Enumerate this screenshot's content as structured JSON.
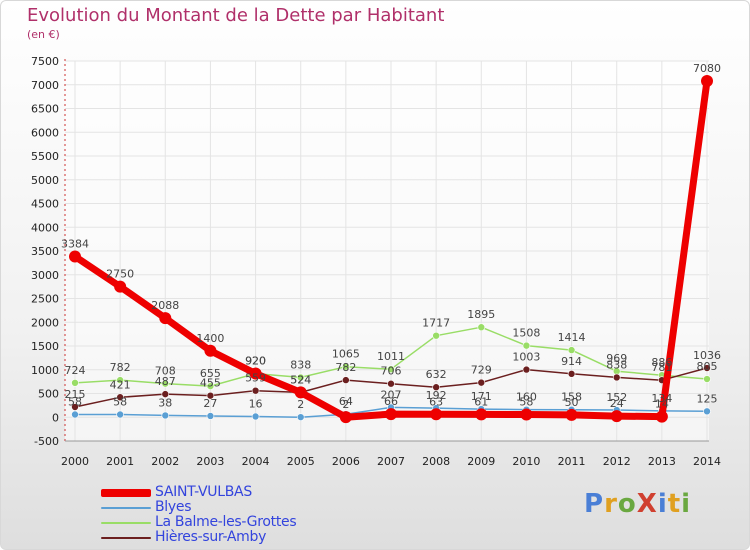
{
  "title": "Evolution du Montant de la Dette par Habitant",
  "subtitle": "(en €)",
  "brand": {
    "text": "ProXiti",
    "letters": [
      {
        "ch": "P",
        "color": "#4a7fd6"
      },
      {
        "ch": "r",
        "color": "#e0a020"
      },
      {
        "ch": "o",
        "color": "#6aa840"
      },
      {
        "ch": "X",
        "color": "#d04030"
      },
      {
        "ch": "i",
        "color": "#4a7fd6"
      },
      {
        "ch": "t",
        "color": "#e0a020"
      },
      {
        "ch": "i",
        "color": "#6aa840"
      }
    ]
  },
  "chart_data": {
    "type": "line",
    "title": "Evolution du Montant de la Dette par Habitant",
    "subtitle": "(en €)",
    "x": [
      2000,
      2001,
      2002,
      2003,
      2004,
      2005,
      2006,
      2007,
      2008,
      2009,
      2010,
      2011,
      2012,
      2013,
      2014
    ],
    "ylim": [
      -500,
      7500
    ],
    "yticks": [
      -500,
      0,
      500,
      1000,
      1500,
      2000,
      2500,
      3000,
      3500,
      4000,
      4500,
      5000,
      5500,
      6000,
      6500,
      7000,
      7500
    ],
    "grid": true,
    "legend_position": "bottom-left",
    "series": [
      {
        "name": "SAINT-VULBAS",
        "color": "#ee0000",
        "width": 7,
        "values": [
          3384,
          2750,
          2088,
          1400,
          920,
          524,
          2,
          66,
          63,
          61,
          58,
          50,
          24,
          14,
          7080
        ]
      },
      {
        "name": "Blyes",
        "color": "#5a9fd4",
        "width": 1.5,
        "values": [
          58,
          58,
          38,
          27,
          16,
          2,
          64,
          207,
          192,
          171,
          160,
          158,
          152,
          134,
          125
        ]
      },
      {
        "name": "La Balme-les-Grottes",
        "color": "#99dd66",
        "width": 1.5,
        "values": [
          724,
          782,
          708,
          655,
          920,
          838,
          1065,
          1011,
          1717,
          1895,
          1508,
          1414,
          969,
          886,
          805
        ]
      },
      {
        "name": "Hières-sur-Amby",
        "color": "#6b1f1f",
        "width": 1.5,
        "values": [
          215,
          421,
          487,
          455,
          559,
          524,
          782,
          706,
          632,
          729,
          1003,
          914,
          838,
          781,
          1036
        ]
      }
    ]
  }
}
